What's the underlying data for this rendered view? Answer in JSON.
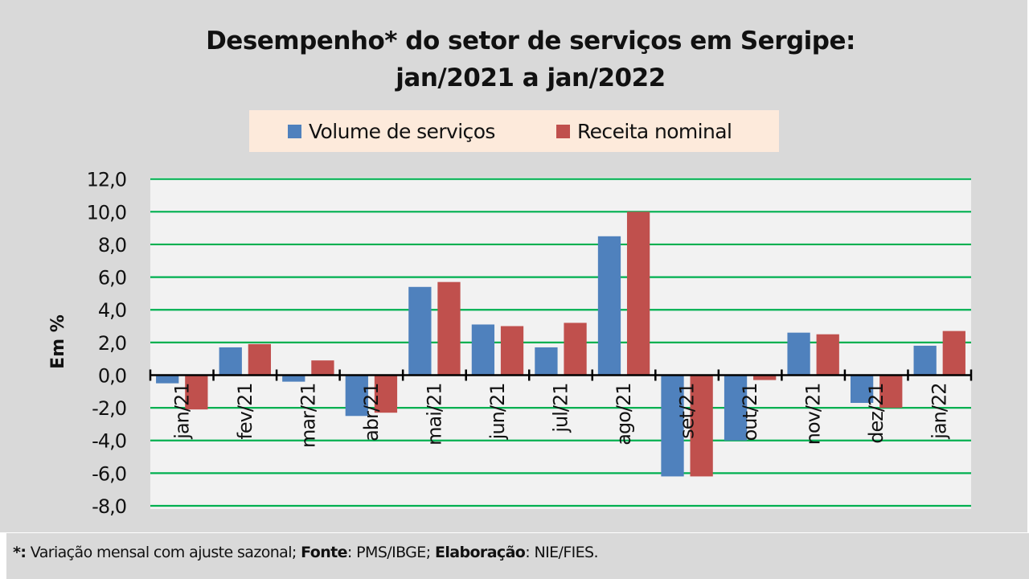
{
  "footer": {
    "star": "*:",
    "star_text": " Variação mensal com ajuste sazonal; ",
    "source_label": "Fonte",
    "source_text": ": PMS/IBGE; ",
    "author_label": "Elaboração",
    "author_text": ": NIE/FIES."
  },
  "chart_data": {
    "type": "bar",
    "title_line1": "Desempenho* do setor de serviços em Sergipe:",
    "title_line2": "jan/2021 a jan/2022",
    "xlabel": "",
    "ylabel": "Em %",
    "ylim": [
      -8,
      12
    ],
    "yticks": [
      12,
      10,
      8,
      6,
      4,
      2,
      0,
      -2,
      -4,
      -6,
      -8
    ],
    "ytick_labels": [
      "12,0",
      "10,0",
      "8,0",
      "6,0",
      "4,0",
      "2,0",
      "0,0",
      "-2,0",
      "-4,0",
      "-6,0",
      "-8,0"
    ],
    "grid": true,
    "legend_position": "top-center",
    "categories": [
      "jan/21",
      "fev/21",
      "mar/21",
      "abr/21",
      "mai/21",
      "jun/21",
      "jul/21",
      "ago/21",
      "set/21",
      "out/21",
      "nov/21",
      "dez/21",
      "jan/22"
    ],
    "series": [
      {
        "name": "Volume de serviços",
        "color": "#4f81bd",
        "values": [
          -0.5,
          1.7,
          -0.4,
          -2.5,
          5.4,
          3.1,
          1.7,
          8.5,
          -6.2,
          -4.0,
          2.6,
          -1.7,
          1.8
        ]
      },
      {
        "name": "Receita nominal",
        "color": "#c0504d",
        "values": [
          -2.1,
          1.9,
          0.9,
          -2.3,
          5.7,
          3.0,
          3.2,
          10.0,
          -6.2,
          -0.3,
          2.5,
          -2.0,
          2.7
        ]
      }
    ],
    "colors": {
      "plot_background": "#f2f2f2",
      "gridline": "#00b050",
      "axis": "#000000"
    }
  }
}
